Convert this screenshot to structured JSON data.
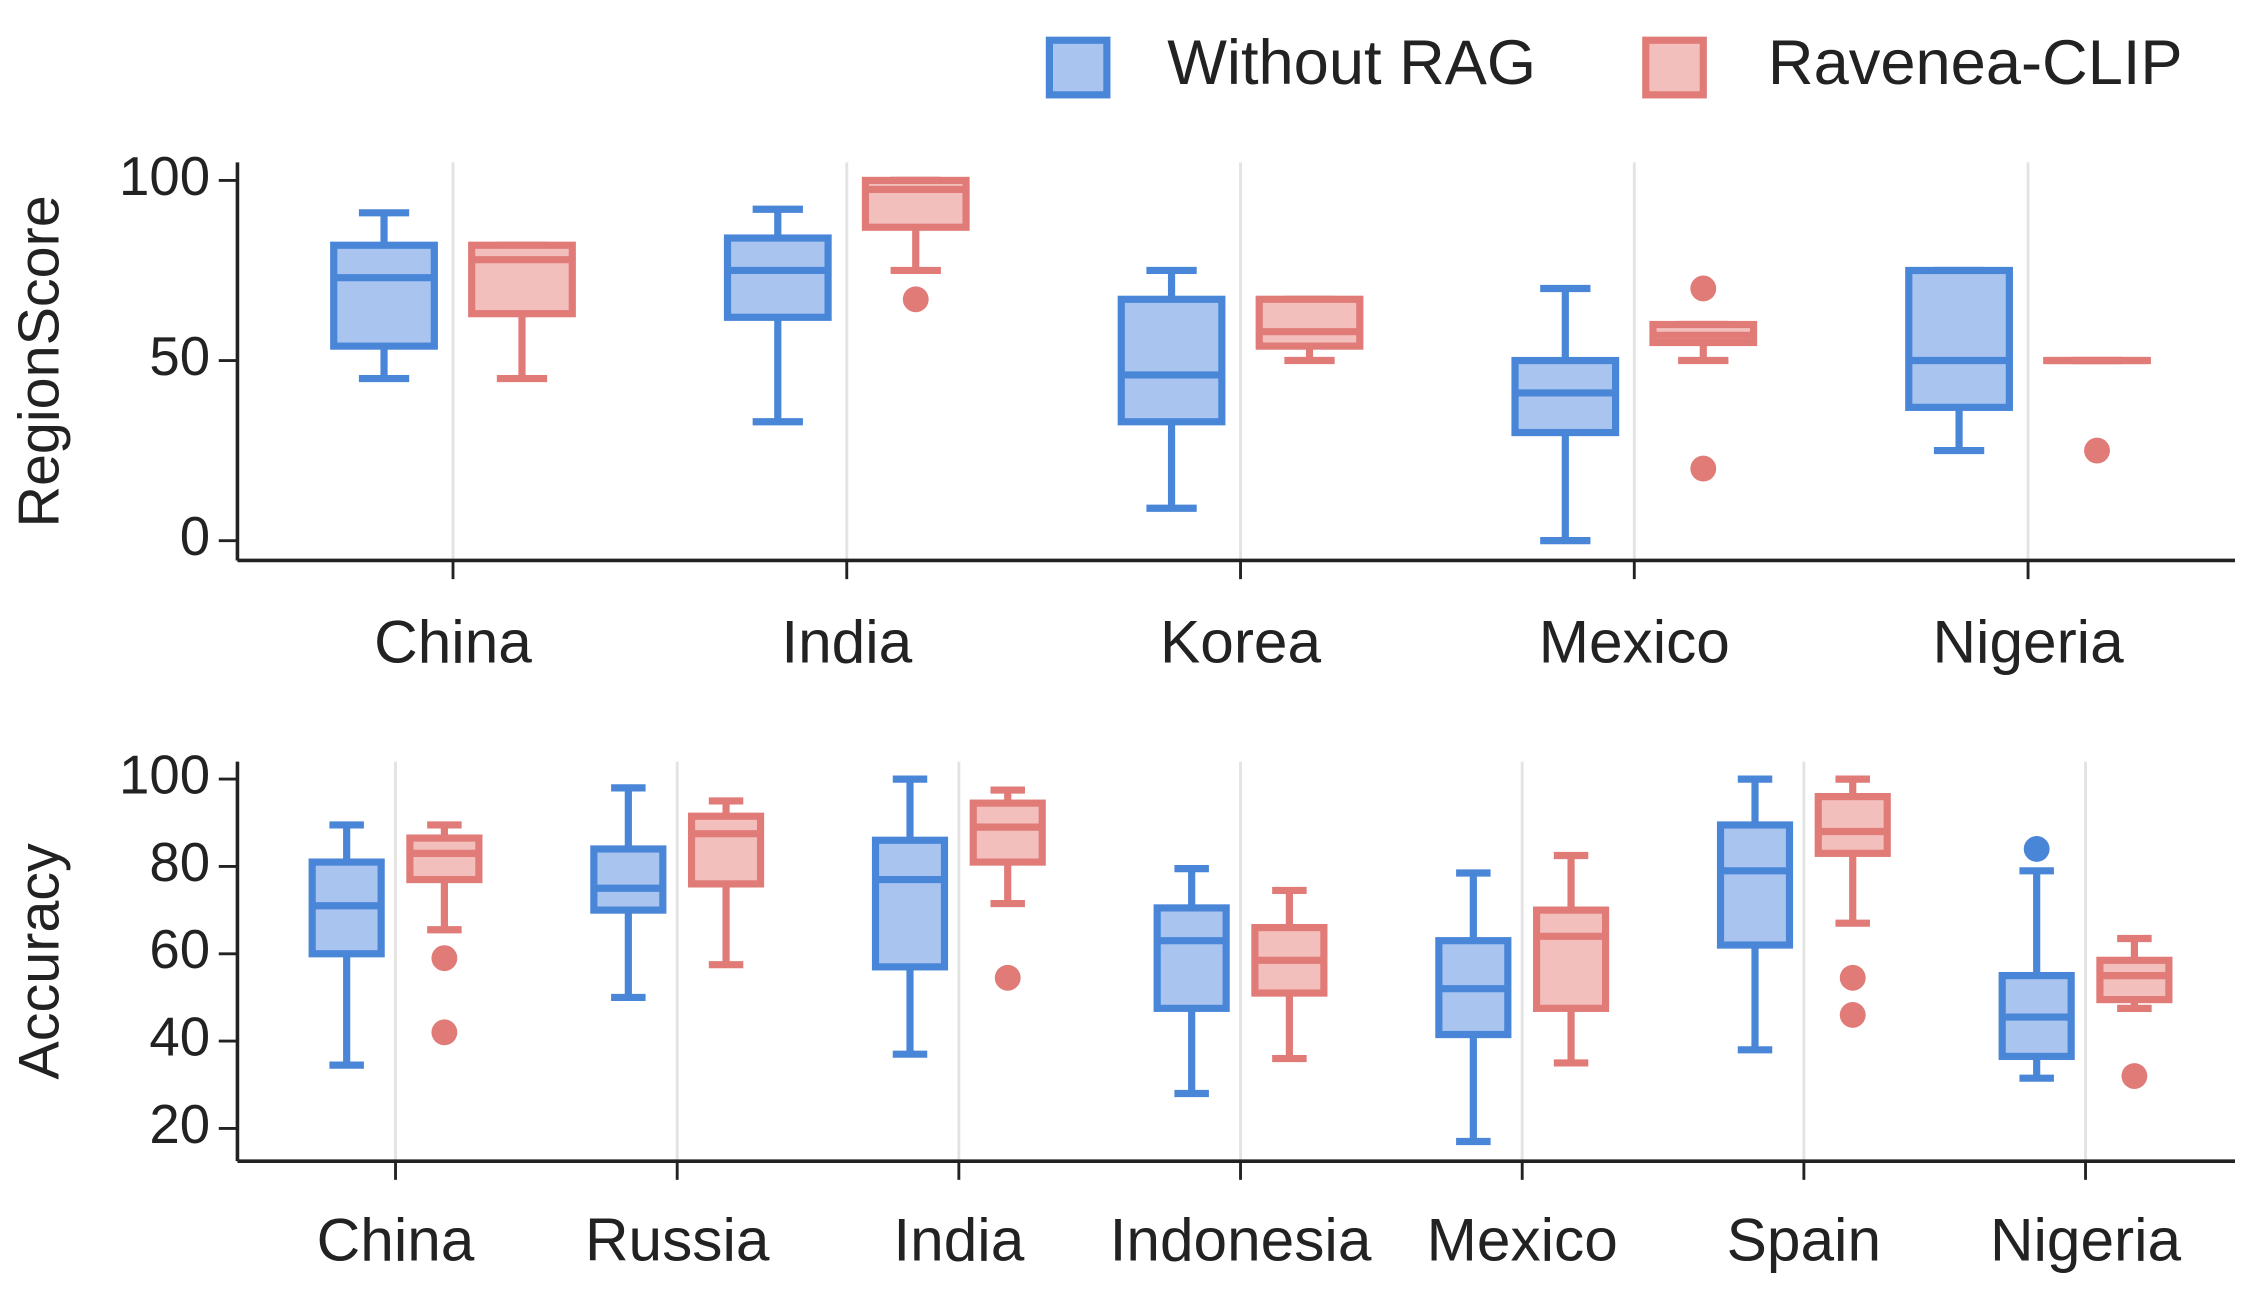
{
  "chart_data": [
    {
      "type": "box",
      "ylabel": "RegionScore",
      "categories": [
        "China",
        "India",
        "Korea",
        "Mexico",
        "Nigeria"
      ],
      "ylim": [
        -5.5,
        105
      ],
      "yticks": [
        0,
        50,
        100
      ],
      "grid": true,
      "legend": "top right",
      "series": [
        {
          "name": "Without RAG",
          "color": "#4a86d8",
          "fill": "#a9c4ee",
          "boxes": [
            {
              "min": 45,
              "q1": 54,
              "median": 73,
              "q3": 82,
              "max": 91,
              "outliers": []
            },
            {
              "min": 33,
              "q1": 62,
              "median": 75,
              "q3": 84,
              "max": 92,
              "outliers": []
            },
            {
              "min": 9,
              "q1": 33,
              "median": 46,
              "q3": 67,
              "max": 75,
              "outliers": []
            },
            {
              "min": 0,
              "q1": 30,
              "median": 41,
              "q3": 50,
              "max": 70,
              "outliers": []
            },
            {
              "min": 25,
              "q1": 37,
              "median": 50,
              "q3": 75,
              "max": 75,
              "outliers": []
            }
          ]
        },
        {
          "name": "Ravenea-CLIP",
          "color": "#e07b78",
          "fill": "#f2bfbd",
          "boxes": [
            {
              "min": 45,
              "q1": 63,
              "median": 78,
              "q3": 82,
              "max": 82,
              "outliers": []
            },
            {
              "min": 75,
              "q1": 87,
              "median": 97.5,
              "q3": 100,
              "max": 100,
              "outliers": [
                67
              ]
            },
            {
              "min": 50,
              "q1": 54,
              "median": 58,
              "q3": 67,
              "max": 67,
              "outliers": []
            },
            {
              "min": 50,
              "q1": 55,
              "median": 57,
              "q3": 60,
              "max": 60,
              "outliers": [
                70,
                20
              ]
            },
            {
              "min": 50,
              "q1": 50,
              "median": 50,
              "q3": 50,
              "max": 50,
              "outliers": [
                25
              ]
            }
          ]
        }
      ]
    },
    {
      "type": "box",
      "ylabel": "Accuracy",
      "categories": [
        "China",
        "Russia",
        "India",
        "Indonesia",
        "Mexico",
        "Spain",
        "Nigeria"
      ],
      "ylim": [
        12.5,
        104
      ],
      "yticks": [
        20,
        40,
        60,
        80,
        100
      ],
      "grid": true,
      "series": [
        {
          "color": "#4a86d8",
          "fill": "#a9c4ee",
          "boxes": [
            {
              "min": 34.5,
              "q1": 60,
              "median": 71,
              "q3": 81,
              "max": 89.5,
              "outliers": []
            },
            {
              "min": 50,
              "q1": 70,
              "median": 75,
              "q3": 84,
              "max": 98,
              "outliers": []
            },
            {
              "min": 37,
              "q1": 57,
              "median": 77,
              "q3": 86,
              "max": 100,
              "outliers": []
            },
            {
              "min": 28,
              "q1": 47.5,
              "median": 63,
              "q3": 70.5,
              "max": 79.5,
              "outliers": []
            },
            {
              "min": 17,
              "q1": 41.5,
              "median": 52,
              "q3": 63,
              "max": 78.5,
              "outliers": []
            },
            {
              "min": 38,
              "q1": 62,
              "median": 79,
              "q3": 89.5,
              "max": 100,
              "outliers": []
            },
            {
              "min": 31.5,
              "q1": 36.5,
              "median": 45.5,
              "q3": 55,
              "max": 79,
              "outliers": [
                84
              ]
            }
          ]
        },
        {
          "color": "#e07b78",
          "fill": "#f2bfbd",
          "boxes": [
            {
              "min": 65.5,
              "q1": 77,
              "median": 83,
              "q3": 86.5,
              "max": 89.5,
              "outliers": [
                59,
                42
              ]
            },
            {
              "min": 57.5,
              "q1": 76,
              "median": 87.5,
              "q3": 91.5,
              "max": 95,
              "outliers": []
            },
            {
              "min": 71.5,
              "q1": 81,
              "median": 89,
              "q3": 94.5,
              "max": 97.5,
              "outliers": [
                54.5
              ]
            },
            {
              "min": 36,
              "q1": 51,
              "median": 58.5,
              "q3": 66,
              "max": 74.5,
              "outliers": []
            },
            {
              "min": 35,
              "q1": 47.5,
              "median": 64,
              "q3": 70,
              "max": 82.5,
              "outliers": []
            },
            {
              "min": 67,
              "q1": 83,
              "median": 88,
              "q3": 96,
              "max": 100,
              "outliers": [
                54.5,
                46
              ]
            },
            {
              "min": 47.5,
              "q1": 49.5,
              "median": 55,
              "q3": 58.5,
              "max": 63.5,
              "outliers": [
                32
              ]
            }
          ]
        }
      ]
    }
  ]
}
